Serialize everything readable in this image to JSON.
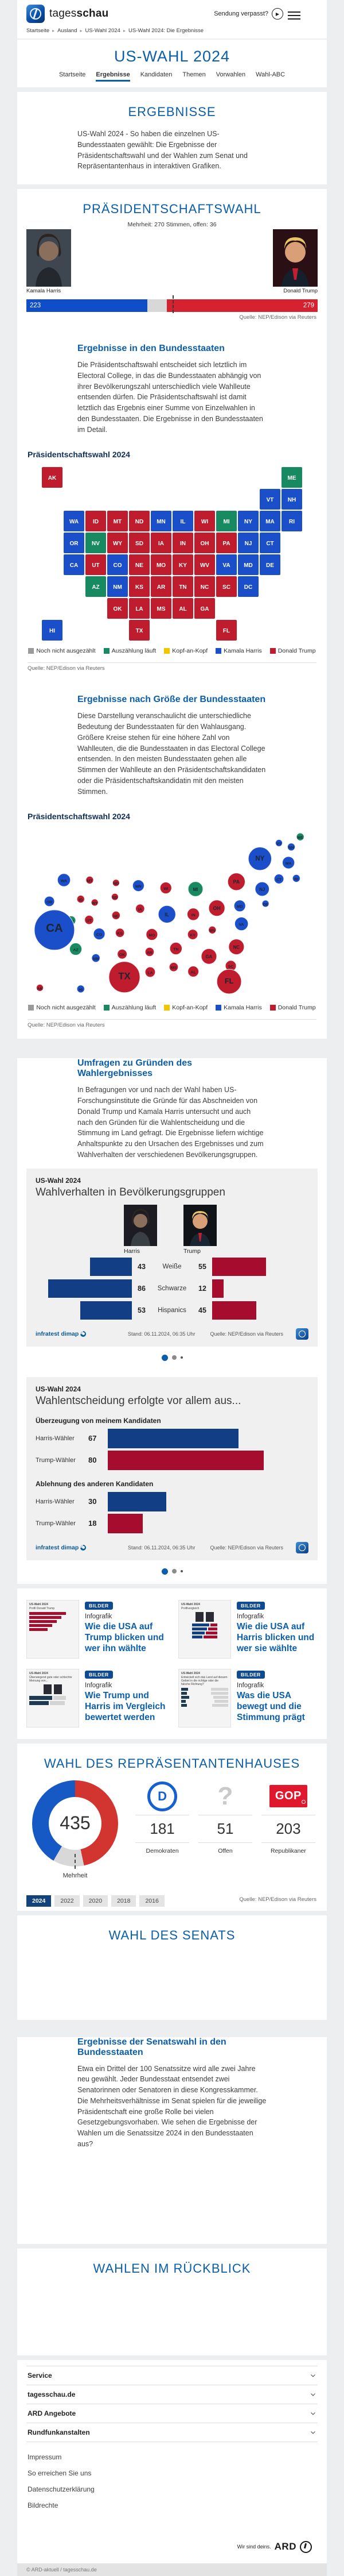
{
  "colors": {
    "harris": "#1a4fc9",
    "trump": "#bf1d2d",
    "counting": "#188a62",
    "none": "#9a9a9a",
    "tie": "#f2c500",
    "bar_harris": "#0f4dc9",
    "bar_trump": "#d6212f",
    "bar_open": "#d8d8d8",
    "navy_bar": "#123e85",
    "darkred_bar": "#a60c2e",
    "donut_dem": "#1659c5",
    "donut_rep": "#d2342f",
    "donut_open": "#d8d8d8"
  },
  "header": {
    "brand_light": "tages",
    "brand_bold": "schau",
    "missed_show": "Sendung verpasst?"
  },
  "breadcrumb": [
    "Startseite",
    "Ausland",
    "US-Wahl 2024",
    "US-Wahl 2024: Die Ergebnisse"
  ],
  "hero": {
    "title": "US-WAHL 2024",
    "tabs": [
      {
        "label": "Startseite",
        "active": false
      },
      {
        "label": "Ergebnisse",
        "active": true
      },
      {
        "label": "Kandidaten",
        "active": false
      },
      {
        "label": "Themen",
        "active": false
      },
      {
        "label": "Vorwahlen",
        "active": false
      },
      {
        "label": "Wahl-ABC",
        "active": false
      }
    ]
  },
  "intro": {
    "title": "ERGEBNISSE",
    "text": "US-Wahl 2024 - So haben die einzelnen US-Bundesstaaten gewählt: Die Ergebnisse der Präsidentschaftswahl und der Wahlen zum Senat und Repräsentantenhaus in interaktiven Grafiken."
  },
  "president": {
    "title": "PRÄSIDENTSCHAFTSWAHL",
    "subtitle": "Mehrheit: 270 Stimmen, offen: 36",
    "harris_name": "Kamala Harris",
    "harris_votes": 223,
    "trump_name": "Donald Trump",
    "trump_votes": 279,
    "open_votes": 36,
    "total": 538,
    "majority": 270,
    "source": "Quelle: NEP/Edison via Reuters"
  },
  "states_section": {
    "heading": "Ergebnisse in den Bundesstaaten",
    "text": "Die Präsidentschaftswahl entscheidet sich letztlich im Electoral College, in das die Bundesstaaten abhängig von ihrer Bevölkerungszahl unterschiedlich viele Wahlleute entsenden dürfen. Die Präsidentschaftswahl ist damit letztlich das Ergebnis einer Summe von Einzelwahlen in den Bundesstaaten. Die Ergebnisse in den Bundesstaaten im Detail.",
    "chart_heading": "Präsidentschaftswahl 2024",
    "source": "Quelle: NEP/Edison via Reuters"
  },
  "legend": [
    {
      "key": "none",
      "label": "Noch nicht ausgezählt"
    },
    {
      "key": "counting",
      "label": "Auszählung läuft"
    },
    {
      "key": "tie",
      "label": "Kopf-an-Kopf"
    },
    {
      "key": "harris",
      "label": "Kamala Harris"
    },
    {
      "key": "trump",
      "label": "Donald Trump"
    }
  ],
  "map_states": [
    {
      "abbr": "AK",
      "col": 0,
      "row": 0,
      "result": "trump"
    },
    {
      "abbr": "ME",
      "col": 11,
      "row": 0,
      "result": "counting"
    },
    {
      "abbr": "VT",
      "col": 10,
      "row": 1,
      "result": "harris"
    },
    {
      "abbr": "NH",
      "col": 11,
      "row": 1,
      "result": "harris"
    },
    {
      "abbr": "WA",
      "col": 1,
      "row": 2,
      "result": "harris"
    },
    {
      "abbr": "ID",
      "col": 2,
      "row": 2,
      "result": "trump"
    },
    {
      "abbr": "MT",
      "col": 3,
      "row": 2,
      "result": "trump"
    },
    {
      "abbr": "ND",
      "col": 4,
      "row": 2,
      "result": "trump"
    },
    {
      "abbr": "MN",
      "col": 5,
      "row": 2,
      "result": "harris"
    },
    {
      "abbr": "IL",
      "col": 6,
      "row": 2,
      "result": "harris"
    },
    {
      "abbr": "WI",
      "col": 7,
      "row": 2,
      "result": "trump"
    },
    {
      "abbr": "MI",
      "col": 8,
      "row": 2,
      "result": "counting"
    },
    {
      "abbr": "NY",
      "col": 9,
      "row": 2,
      "result": "harris"
    },
    {
      "abbr": "MA",
      "col": 10,
      "row": 2,
      "result": "harris"
    },
    {
      "abbr": "RI",
      "col": 11,
      "row": 2,
      "result": "harris"
    },
    {
      "abbr": "OR",
      "col": 1,
      "row": 3,
      "result": "harris"
    },
    {
      "abbr": "NV",
      "col": 2,
      "row": 3,
      "result": "counting"
    },
    {
      "abbr": "WY",
      "col": 3,
      "row": 3,
      "result": "trump"
    },
    {
      "abbr": "SD",
      "col": 4,
      "row": 3,
      "result": "trump"
    },
    {
      "abbr": "IA",
      "col": 5,
      "row": 3,
      "result": "trump"
    },
    {
      "abbr": "IN",
      "col": 6,
      "row": 3,
      "result": "trump"
    },
    {
      "abbr": "OH",
      "col": 7,
      "row": 3,
      "result": "trump"
    },
    {
      "abbr": "PA",
      "col": 8,
      "row": 3,
      "result": "trump"
    },
    {
      "abbr": "NJ",
      "col": 9,
      "row": 3,
      "result": "harris"
    },
    {
      "abbr": "CT",
      "col": 10,
      "row": 3,
      "result": "harris"
    },
    {
      "abbr": "CA",
      "col": 1,
      "row": 4,
      "result": "harris"
    },
    {
      "abbr": "UT",
      "col": 2,
      "row": 4,
      "result": "trump"
    },
    {
      "abbr": "CO",
      "col": 3,
      "row": 4,
      "result": "harris"
    },
    {
      "abbr": "NE",
      "col": 4,
      "row": 4,
      "result": "trump"
    },
    {
      "abbr": "MO",
      "col": 5,
      "row": 4,
      "result": "trump"
    },
    {
      "abbr": "KY",
      "col": 6,
      "row": 4,
      "result": "trump"
    },
    {
      "abbr": "WV",
      "col": 7,
      "row": 4,
      "result": "trump"
    },
    {
      "abbr": "VA",
      "col": 8,
      "row": 4,
      "result": "harris"
    },
    {
      "abbr": "MD",
      "col": 9,
      "row": 4,
      "result": "harris"
    },
    {
      "abbr": "DE",
      "col": 10,
      "row": 4,
      "result": "harris"
    },
    {
      "abbr": "AZ",
      "col": 2,
      "row": 5,
      "result": "counting"
    },
    {
      "abbr": "NM",
      "col": 3,
      "row": 5,
      "result": "harris"
    },
    {
      "abbr": "KS",
      "col": 4,
      "row": 5,
      "result": "trump"
    },
    {
      "abbr": "AR",
      "col": 5,
      "row": 5,
      "result": "trump"
    },
    {
      "abbr": "TN",
      "col": 6,
      "row": 5,
      "result": "trump"
    },
    {
      "abbr": "NC",
      "col": 7,
      "row": 5,
      "result": "trump"
    },
    {
      "abbr": "SC",
      "col": 8,
      "row": 5,
      "result": "trump"
    },
    {
      "abbr": "DC",
      "col": 9,
      "row": 5,
      "result": "harris"
    },
    {
      "abbr": "OK",
      "col": 3,
      "row": 6,
      "result": "trump"
    },
    {
      "abbr": "LA",
      "col": 4,
      "row": 6,
      "result": "trump"
    },
    {
      "abbr": "MS",
      "col": 5,
      "row": 6,
      "result": "trump"
    },
    {
      "abbr": "AL",
      "col": 6,
      "row": 6,
      "result": "trump"
    },
    {
      "abbr": "GA",
      "col": 7,
      "row": 6,
      "result": "trump"
    },
    {
      "abbr": "HI",
      "col": 0,
      "row": 7,
      "result": "harris"
    },
    {
      "abbr": "TX",
      "col": 4,
      "row": 7,
      "result": "trump"
    },
    {
      "abbr": "FL",
      "col": 8,
      "row": 7,
      "result": "trump"
    }
  ],
  "size_section": {
    "heading": "Ergebnisse nach Größe der Bundesstaaten",
    "text": "Diese Darstellung veranschaulicht die unterschiedliche Bedeutung der Bundesstaaten für den Wahlausgang. Größere Kreise stehen für eine höhere Zahl von Wahlleuten, die die Bundesstaaten in das Electoral College entsenden. In den meisten Bundesstaaten gehen alle Stimmen der Wahlleute an den Präsidentschaftskandidaten oder die Präsidentschaftskandidatin mit den meisten Stimmen.",
    "chart_heading": "Präsidentschaftswahl 2024",
    "source": "Quelle: NEP/Edison via Reuters"
  },
  "bubbles": [
    {
      "abbr": "ME",
      "x": 489,
      "y": 14,
      "ev": 4,
      "result": "counting"
    },
    {
      "abbr": "VT",
      "x": 451,
      "y": 25,
      "ev": 3,
      "result": "harris"
    },
    {
      "abbr": "NH",
      "x": 473,
      "y": 32,
      "ev": 4,
      "result": "harris"
    },
    {
      "abbr": "NY",
      "x": 417,
      "y": 53,
      "ev": 28,
      "result": "harris"
    },
    {
      "abbr": "MA",
      "x": 468,
      "y": 60,
      "ev": 11,
      "result": "harris"
    },
    {
      "abbr": "CT",
      "x": 451,
      "y": 89,
      "ev": 7,
      "result": "harris"
    },
    {
      "abbr": "RI",
      "x": 482,
      "y": 88,
      "ev": 4,
      "result": "harris"
    },
    {
      "abbr": "NJ",
      "x": 421,
      "y": 107,
      "ev": 14,
      "result": "harris"
    },
    {
      "abbr": "PA",
      "x": 375,
      "y": 94,
      "ev": 19,
      "result": "trump"
    },
    {
      "abbr": "MD",
      "x": 381,
      "y": 137,
      "ev": 10,
      "result": "harris"
    },
    {
      "abbr": "DE",
      "x": 427,
      "y": 133,
      "ev": 3,
      "result": "harris"
    },
    {
      "abbr": "WA",
      "x": 67,
      "y": 91,
      "ev": 12,
      "result": "harris"
    },
    {
      "abbr": "MT",
      "x": 113,
      "y": 91,
      "ev": 4,
      "result": "trump"
    },
    {
      "abbr": "ND",
      "x": 160,
      "y": 96,
      "ev": 3,
      "result": "trump"
    },
    {
      "abbr": "MN",
      "x": 200,
      "y": 101,
      "ev": 10,
      "result": "harris"
    },
    {
      "abbr": "WI",
      "x": 249,
      "y": 105,
      "ev": 10,
      "result": "trump"
    },
    {
      "abbr": "MI",
      "x": 302,
      "y": 107,
      "ev": 15,
      "result": "counting"
    },
    {
      "abbr": "OR",
      "x": 41,
      "y": 129,
      "ev": 8,
      "result": "harris"
    },
    {
      "abbr": "ID",
      "x": 97,
      "y": 125,
      "ev": 4,
      "result": "trump"
    },
    {
      "abbr": "WY",
      "x": 122,
      "y": 131,
      "ev": 3,
      "result": "trump"
    },
    {
      "abbr": "SD",
      "x": 158,
      "y": 121,
      "ev": 3,
      "result": "trump"
    },
    {
      "abbr": "IA",
      "x": 203,
      "y": 142,
      "ev": 6,
      "result": "trump"
    },
    {
      "abbr": "NE",
      "x": 160,
      "y": 154,
      "ev": 5,
      "result": "trump"
    },
    {
      "abbr": "IL",
      "x": 251,
      "y": 152,
      "ev": 19,
      "result": "harris"
    },
    {
      "abbr": "IN",
      "x": 298,
      "y": 152,
      "ev": 11,
      "result": "trump"
    },
    {
      "abbr": "OH",
      "x": 340,
      "y": 141,
      "ev": 17,
      "result": "trump"
    },
    {
      "abbr": "WV",
      "x": 332,
      "y": 180,
      "ev": 4,
      "result": "trump"
    },
    {
      "abbr": "KY",
      "x": 297,
      "y": 188,
      "ev": 8,
      "result": "trump"
    },
    {
      "abbr": "VA",
      "x": 384,
      "y": 169,
      "ev": 13,
      "result": "harris"
    },
    {
      "abbr": "NV",
      "x": 80,
      "y": 163,
      "ev": 6,
      "result": "counting"
    },
    {
      "abbr": "UT",
      "x": 112,
      "y": 162,
      "ev": 6,
      "result": "trump"
    },
    {
      "abbr": "CO",
      "x": 130,
      "y": 187,
      "ev": 10,
      "result": "harris"
    },
    {
      "abbr": "KS",
      "x": 167,
      "y": 185,
      "ev": 6,
      "result": "trump"
    },
    {
      "abbr": "MO",
      "x": 224,
      "y": 188,
      "ev": 10,
      "result": "trump"
    },
    {
      "abbr": "CA",
      "x": 50,
      "y": 180,
      "ev": 54,
      "result": "harris"
    },
    {
      "abbr": "AZ",
      "x": 88,
      "y": 214,
      "ev": 11,
      "result": "counting"
    },
    {
      "abbr": "NM",
      "x": 124,
      "y": 230,
      "ev": 5,
      "result": "harris"
    },
    {
      "abbr": "OK",
      "x": 171,
      "y": 223,
      "ev": 7,
      "result": "trump"
    },
    {
      "abbr": "AR",
      "x": 220,
      "y": 219,
      "ev": 6,
      "result": "trump"
    },
    {
      "abbr": "TN",
      "x": 267,
      "y": 213,
      "ev": 11,
      "result": "trump"
    },
    {
      "abbr": "NC",
      "x": 375,
      "y": 210,
      "ev": 16,
      "result": "trump"
    },
    {
      "abbr": "SC",
      "x": 365,
      "y": 244,
      "ev": 9,
      "result": "trump"
    },
    {
      "abbr": "GA",
      "x": 326,
      "y": 227,
      "ev": 16,
      "result": "trump"
    },
    {
      "abbr": "MS",
      "x": 263,
      "y": 246,
      "ev": 6,
      "result": "trump"
    },
    {
      "abbr": "AL",
      "x": 298,
      "y": 254,
      "ev": 9,
      "result": "trump"
    },
    {
      "abbr": "LA",
      "x": 221,
      "y": 255,
      "ev": 8,
      "result": "trump"
    },
    {
      "abbr": "TX",
      "x": 175,
      "y": 264,
      "ev": 40,
      "result": "trump"
    },
    {
      "abbr": "FL",
      "x": 362,
      "y": 272,
      "ev": 30,
      "result": "trump"
    },
    {
      "abbr": "AK",
      "x": 24,
      "y": 283,
      "ev": 3,
      "result": "trump"
    },
    {
      "abbr": "HI",
      "x": 97,
      "y": 285,
      "ev": 4,
      "result": "harris"
    }
  ],
  "polls": {
    "heading": "Umfragen zu Gründen des Wahlergebnisses",
    "text": "In Befragungen vor und nach der Wahl haben US-Forschungsinstitute die Gründe für das Abschneiden von Donald Trump und Kamala Harris untersucht und auch nach den Gründen für die Wahlentscheidung und die Stimmung im Land gefragt. Die Ergebnisse liefern wichtige Anhaltspunkte zu den Ursachen des Ergebnisses und zum Wahlverhalten der verschiedenen Bevölkerungsgruppen."
  },
  "demo_chart": {
    "kicker": "US-Wahl 2024",
    "title": "Wahlverhalten in Bevölkerungsgruppen",
    "left_name": "Harris",
    "right_name": "Trump",
    "rows": [
      {
        "label": "Weiße",
        "harris": 43,
        "trump": 55
      },
      {
        "label": "Schwarze",
        "harris": 86,
        "trump": 12
      },
      {
        "label": "Hispanics",
        "harris": 53,
        "trump": 45
      }
    ],
    "brand": "infratest dimap",
    "stand": "Stand:  06.11.2024, 06:35 Uhr",
    "source": "Quelle: NEP/Edison via Reuters"
  },
  "reason_chart": {
    "kicker": "US-Wahl 2024",
    "title": "Wahlentscheidung erfolgte vor allem aus...",
    "groups": [
      {
        "title": "Überzeugung von meinem Kandidaten",
        "bars": [
          {
            "label": "Harris-Wähler",
            "value": 67,
            "party": "harris"
          },
          {
            "label": "Trump-Wähler",
            "value": 80,
            "party": "trump"
          }
        ]
      },
      {
        "title": "Ablehnung des anderen Kandidaten",
        "bars": [
          {
            "label": "Harris-Wähler",
            "value": 30,
            "party": "harris"
          },
          {
            "label": "Trump-Wähler",
            "value": 18,
            "party": "trump"
          }
        ]
      }
    ],
    "brand": "infratest dimap",
    "stand": "Stand:  06.11.2024, 06:35 Uhr",
    "source": "Quelle: NEP/Edison via Reuters"
  },
  "carousel": {
    "dot_count": 3,
    "active_dot": 0
  },
  "teasers": [
    {
      "badge": "BILDER",
      "kicker": "Infografik",
      "title": "Wie die USA auf Trump blicken und wer ihn wählte",
      "thumb_kicker": "US-Wahl 2024",
      "thumb_title": "Profil Donald Trump",
      "thumb_type": "bars-red"
    },
    {
      "badge": "BILDER",
      "kicker": "Infografik",
      "title": "Wie die USA auf Harris blicken und wer sie wählte",
      "thumb_kicker": "US-Wahl 2024",
      "thumb_title": "Profilvergleich",
      "thumb_type": "compare"
    },
    {
      "badge": "BILDER",
      "kicker": "Infografik",
      "title": "Wie Trump und Harris im Vergleich bewertet werden",
      "thumb_kicker": "US-Wahl 2024",
      "thumb_title": "Überwiegend gute oder schlechte Meinung von...",
      "thumb_type": "opinion"
    },
    {
      "badge": "BILDER",
      "kicker": "Infografik",
      "title": "Was die USA bewegt und die Stimmung prägt",
      "thumb_kicker": "US-Wahl 2024",
      "thumb_title": "Entwickelt sich das Land auf diesem Gebiet in die richtige oder die falsche Richtung?",
      "thumb_type": "mood"
    }
  ],
  "house": {
    "title": "WAHL DES REPRÄSENTANTENHAUSES",
    "total": 435,
    "majority_label": "Mehrheit",
    "dem_seats": 181,
    "dem_label": "Demokraten",
    "open_seats": 51,
    "open_label": "Offen",
    "rep_seats": 203,
    "rep_label": "Republikaner",
    "years": [
      {
        "label": "2024",
        "active": true
      },
      {
        "label": "2022",
        "active": false
      },
      {
        "label": "2020",
        "active": false
      },
      {
        "label": "2018",
        "active": false
      },
      {
        "label": "2016",
        "active": false
      }
    ],
    "source": "Quelle: NEP/Edison via Reuters"
  },
  "senate": {
    "title": "WAHL DES SENATS"
  },
  "senate_states": {
    "heading": "Ergebnisse der Senatswahl in den Bundesstaaten",
    "text": "Etwa ein Drittel der 100 Senatssitze wird alle zwei Jahre neu gewählt. Jeder Bundesstaat entsendet zwei Senatorinnen oder Senatoren in diese Kongresskammer. Die Mehrheitsverhältnisse im Senat spielen für die jeweilige Präsidentschaft eine große Rolle bei vielen Gesetzgebungsvorhaben. Wie sehen die Ergebnisse der Wahlen um die Senatssitze 2024 in den Bundesstaaten aus?"
  },
  "review": {
    "title": "WAHLEN IM RÜCKBLICK"
  },
  "footer": {
    "accordions": [
      "Service",
      "tagesschau.de",
      "ARD Angebote",
      "Rundfunkanstalten"
    ],
    "links": [
      "Impressum",
      "So erreichen Sie uns",
      "Datenschutzerklärung",
      "Bildrechte"
    ],
    "slogan": "Wir sind deins.",
    "brand": "ARD",
    "copyright": "© ARD-aktuell / tagesschau.de"
  },
  "chart_data": [
    {
      "type": "bar",
      "title": "Präsidentschaftswahl Electoral College",
      "categories": [
        "Kamala Harris",
        "offen",
        "Donald Trump"
      ],
      "values": [
        223,
        36,
        279
      ],
      "majority": 270,
      "total": 538
    },
    {
      "type": "heatmap",
      "title": "Präsidentschaftswahl 2024 nach Bundesstaaten",
      "note": "Ergebnis je Bundesstaat, siehe map_states; grün = Auszählung läuft (NV, AZ, MI, ME)"
    },
    {
      "type": "scatter",
      "title": "Präsidentschaftswahl 2024 nach Größe der Bundesstaaten",
      "note": "Kreisfläche = Wahlleute, siehe bubbles"
    },
    {
      "type": "bar",
      "title": "Wahlverhalten in Bevölkerungsgruppen",
      "categories": [
        "Weiße",
        "Schwarze",
        "Hispanics"
      ],
      "series": [
        {
          "name": "Harris",
          "values": [
            43,
            86,
            53
          ]
        },
        {
          "name": "Trump",
          "values": [
            55,
            12,
            45
          ]
        }
      ]
    },
    {
      "type": "bar",
      "title": "Wahlentscheidung erfolgte vor allem aus...",
      "categories": [
        "Überzeugung von meinem Kandidaten",
        "Ablehnung des anderen Kandidaten"
      ],
      "series": [
        {
          "name": "Harris-Wähler",
          "values": [
            67,
            30
          ]
        },
        {
          "name": "Trump-Wähler",
          "values": [
            80,
            18
          ]
        }
      ]
    },
    {
      "type": "pie",
      "title": "Wahl des Repräsentantenhauses",
      "categories": [
        "Demokraten",
        "Offen",
        "Republikaner"
      ],
      "values": [
        181,
        51,
        203
      ],
      "total": 435
    }
  ]
}
